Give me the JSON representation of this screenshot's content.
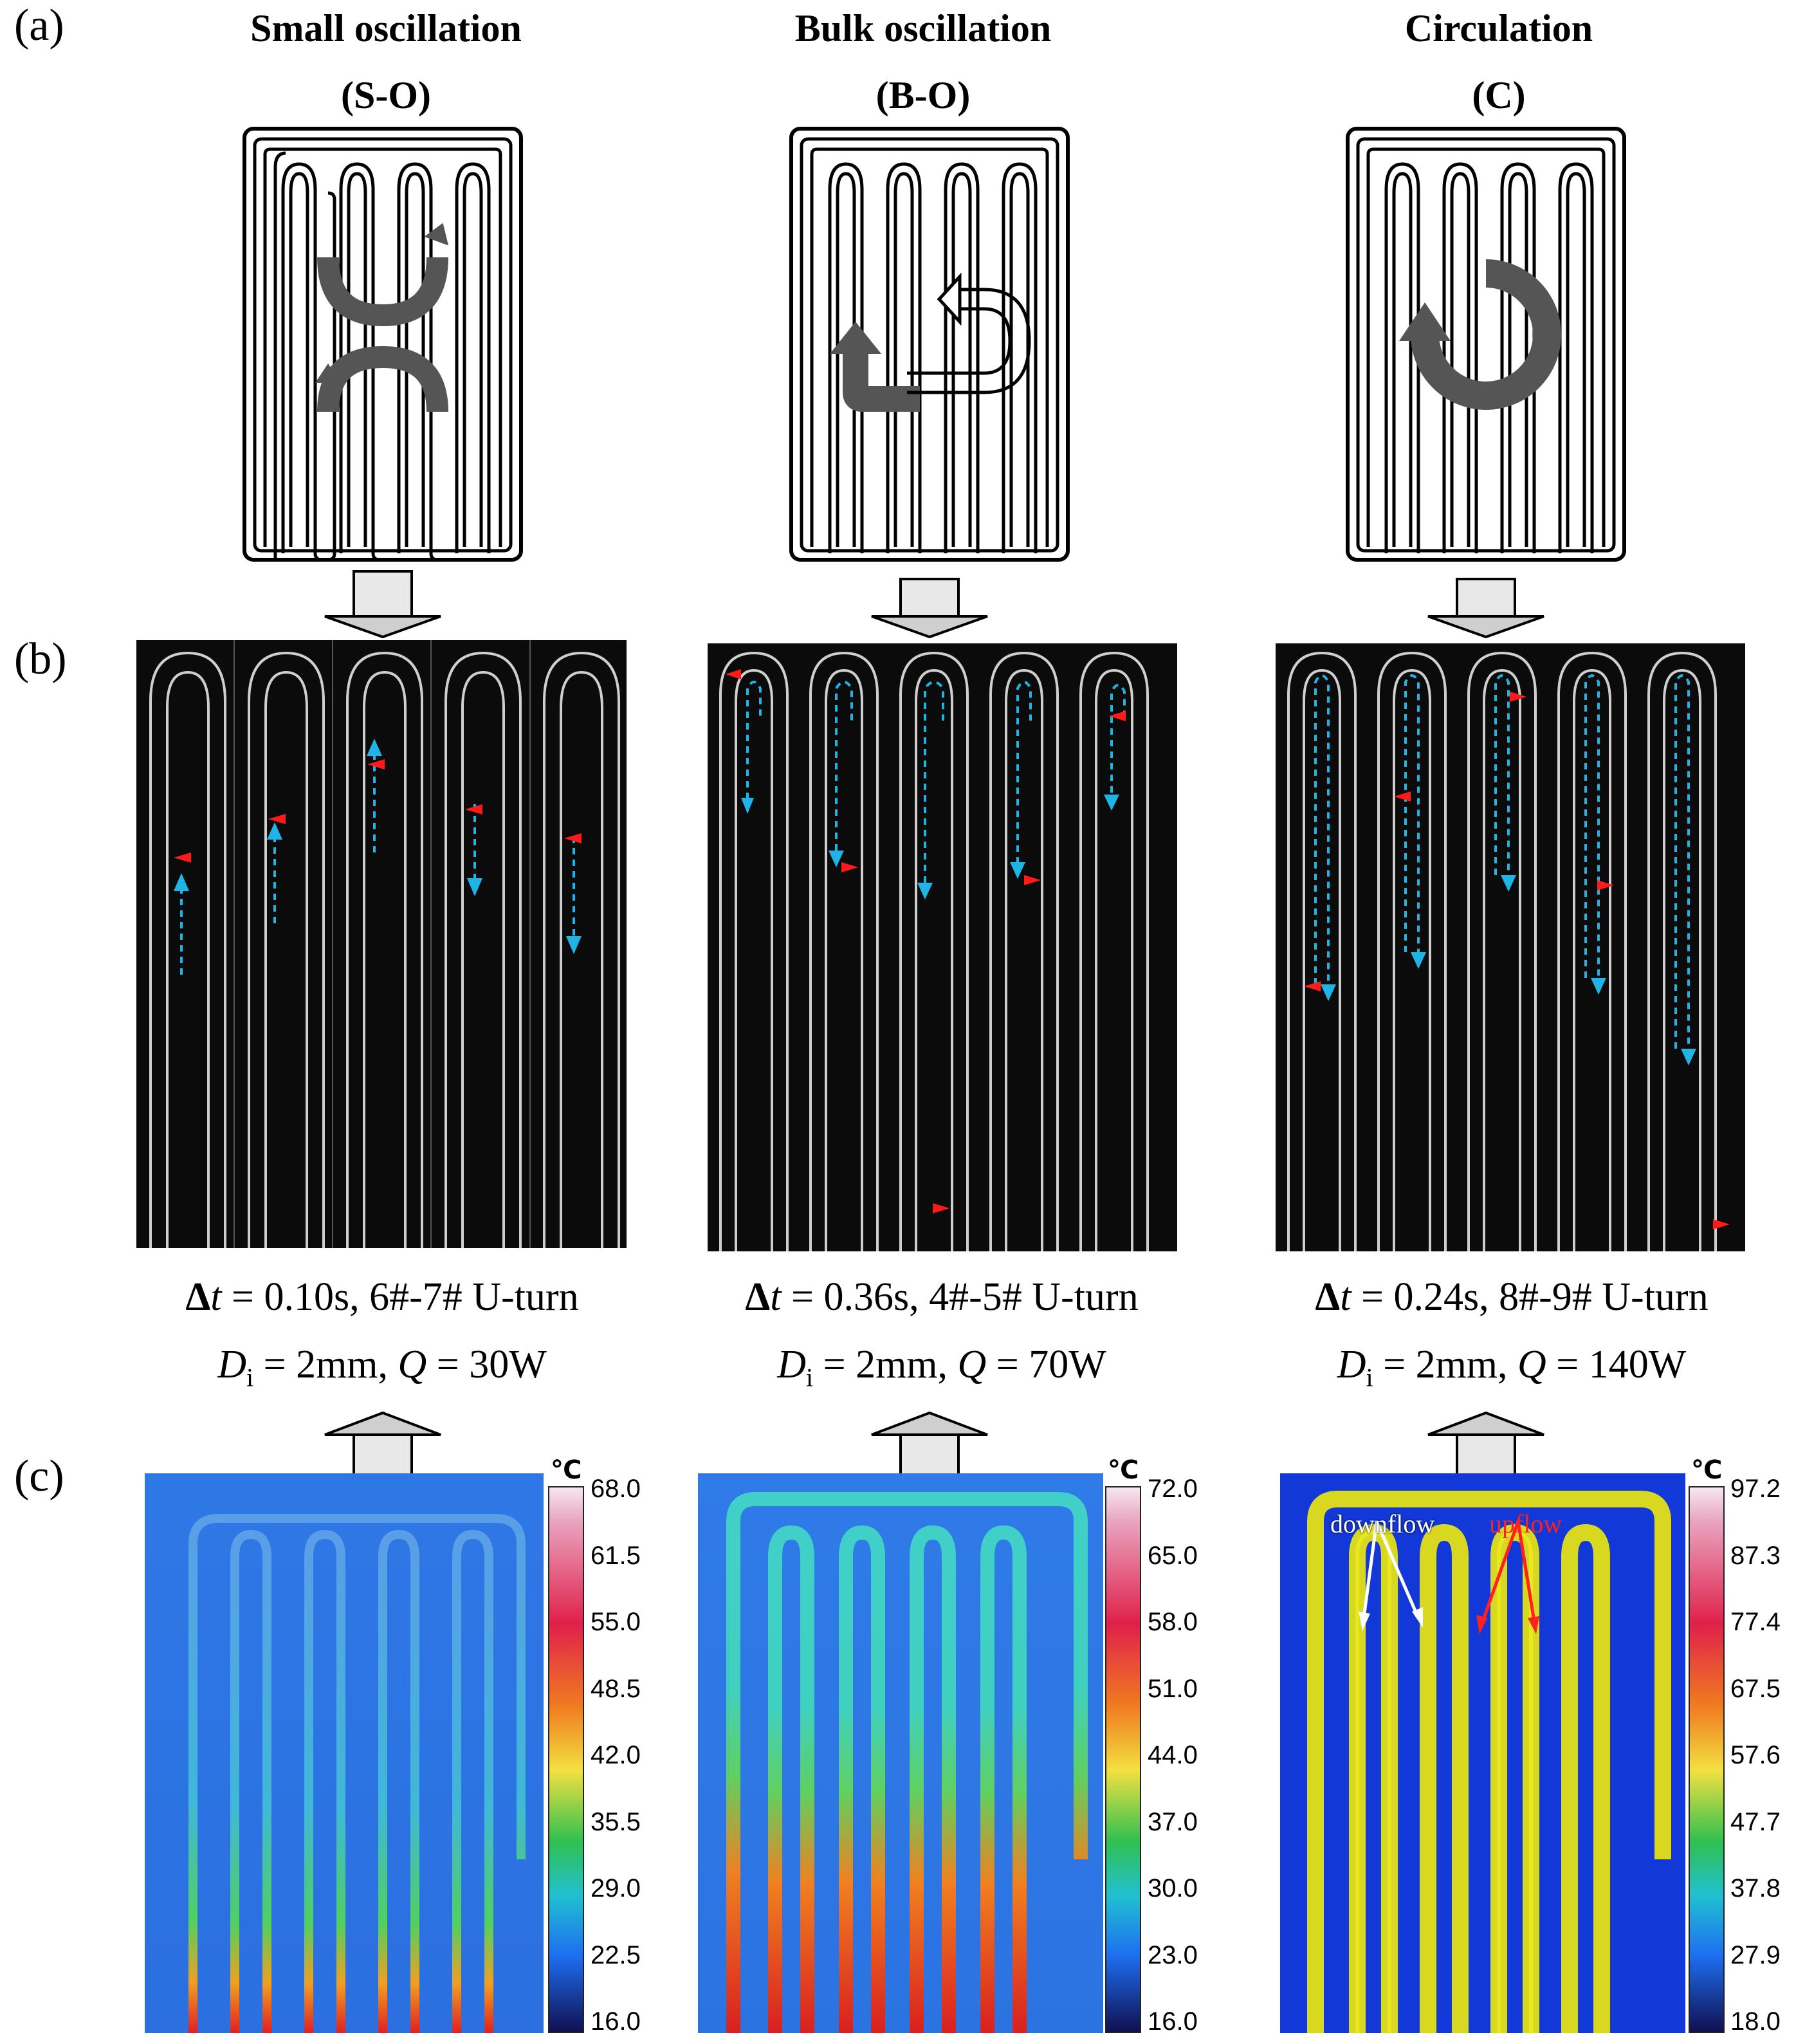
{
  "labels": {
    "a": "(a)",
    "b": "(b)",
    "c": "(c)"
  },
  "columns": [
    {
      "id": "so",
      "title": "Small oscillation",
      "abbr": "(S-O)",
      "caption_dt": "0.10s, 6#-7# U-turn",
      "caption_di": "2mm,",
      "caption_q": "30W",
      "colorbar_unit": "℃",
      "colorbar_ticks": [
        "68.0",
        "61.5",
        "55.0",
        "48.5",
        "42.0",
        "35.5",
        "29.0",
        "22.5",
        "16.0"
      ]
    },
    {
      "id": "bo",
      "title": "Bulk oscillation",
      "abbr": "(B-O)",
      "caption_dt": "0.36s, 4#-5# U-turn",
      "caption_di": "2mm,",
      "caption_q": "70W",
      "colorbar_unit": "℃",
      "colorbar_ticks": [
        "72.0",
        "65.0",
        "58.0",
        "51.0",
        "44.0",
        "37.0",
        "30.0",
        "23.0",
        "16.0"
      ]
    },
    {
      "id": "c",
      "title": "Circulation",
      "abbr": "(C)",
      "caption_dt": "0.24s, 8#-9# U-turn",
      "caption_di": "2mm,",
      "caption_q": "140W",
      "colorbar_unit": "℃",
      "colorbar_ticks": [
        "97.2",
        "87.3",
        "77.4",
        "67.5",
        "57.6",
        "47.7",
        "37.8",
        "27.9",
        "18.0"
      ],
      "annotations": {
        "downflow": "downflow",
        "upflow": "upflow"
      }
    }
  ],
  "symbols": {
    "delta_t": "Δt",
    "equals": "=",
    "d_i": "D",
    "d_i_sub": "i",
    "q": "Q"
  },
  "colors": {
    "arrow_red": "#ff1a1a",
    "arrow_cyan": "#1fb4e6",
    "thermal_bg_so": "#2b6fe0",
    "thermal_bg_c": "#1238d8"
  }
}
